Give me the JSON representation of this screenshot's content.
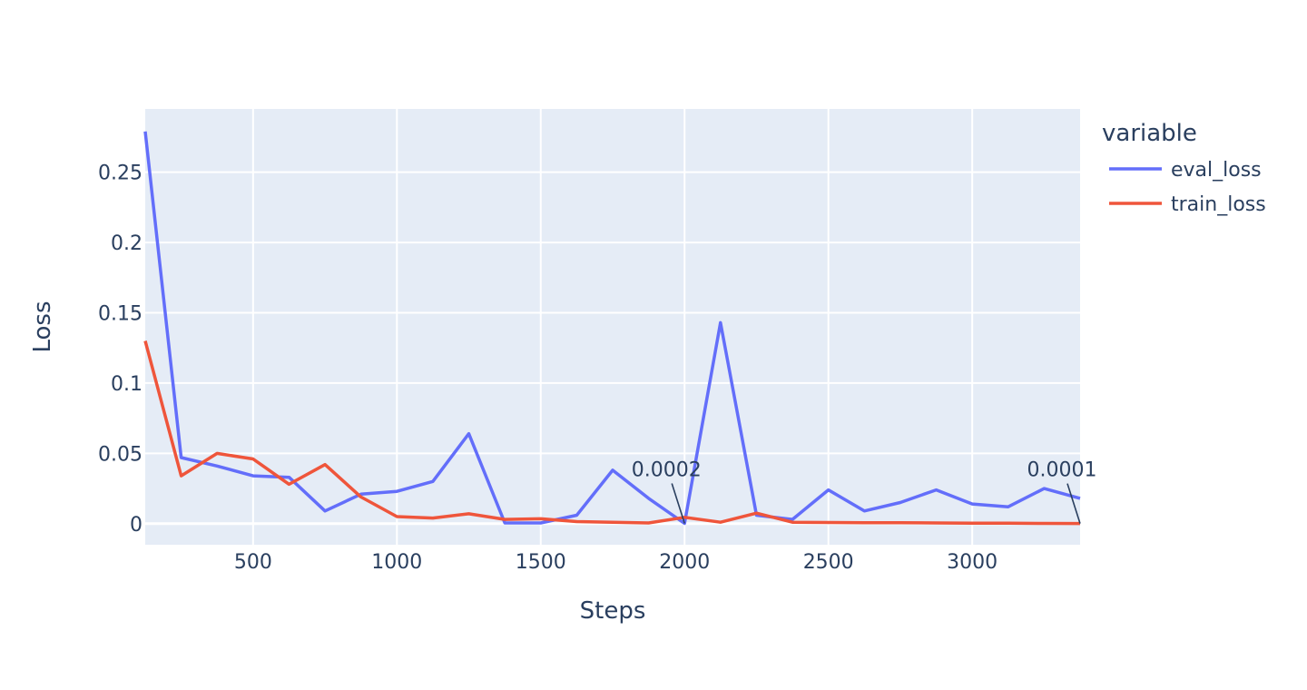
{
  "chart_data": {
    "type": "line",
    "title": "",
    "xlabel": "Steps",
    "ylabel": "Loss",
    "xlim": [
      125,
      3375
    ],
    "ylim": [
      -0.015,
      0.295
    ],
    "x_ticks": [
      500,
      1000,
      1500,
      2000,
      2500,
      3000
    ],
    "y_ticks": [
      {
        "value": 0,
        "label": "0"
      },
      {
        "value": 0.05,
        "label": "0.05"
      },
      {
        "value": 0.1,
        "label": "0.1"
      },
      {
        "value": 0.15,
        "label": "0.15"
      },
      {
        "value": 0.2,
        "label": "0.2"
      },
      {
        "value": 0.25,
        "label": "0.25"
      }
    ],
    "grid": true,
    "plot_background": "#e5ecf6",
    "legend": {
      "title": "variable",
      "placement": "right"
    },
    "series": [
      {
        "name": "eval_loss",
        "color": "#636efa",
        "points": [
          [
            125,
            0.279
          ],
          [
            250,
            0.047
          ],
          [
            375,
            0.041
          ],
          [
            500,
            0.034
          ],
          [
            625,
            0.033
          ],
          [
            750,
            0.009
          ],
          [
            875,
            0.021
          ],
          [
            1000,
            0.023
          ],
          [
            1125,
            0.03
          ],
          [
            1250,
            0.064
          ],
          [
            1375,
            0.0005
          ],
          [
            1500,
            0.0005
          ],
          [
            1625,
            0.006
          ],
          [
            1750,
            0.038
          ],
          [
            1875,
            0.018
          ],
          [
            2000,
            0.0002
          ],
          [
            2125,
            0.143
          ],
          [
            2250,
            0.006
          ],
          [
            2375,
            0.003
          ],
          [
            2500,
            0.024
          ],
          [
            2625,
            0.009
          ],
          [
            2750,
            0.015
          ],
          [
            2875,
            0.024
          ],
          [
            3000,
            0.014
          ],
          [
            3125,
            0.012
          ],
          [
            3250,
            0.025
          ],
          [
            3375,
            0.018
          ]
        ]
      },
      {
        "name": "train_loss",
        "color": "#ef553b",
        "points": [
          [
            125,
            0.13
          ],
          [
            250,
            0.034
          ],
          [
            375,
            0.05
          ],
          [
            500,
            0.046
          ],
          [
            625,
            0.028
          ],
          [
            750,
            0.042
          ],
          [
            875,
            0.019
          ],
          [
            1000,
            0.005
          ],
          [
            1125,
            0.004
          ],
          [
            1250,
            0.007
          ],
          [
            1375,
            0.003
          ],
          [
            1500,
            0.0035
          ],
          [
            1625,
            0.0015
          ],
          [
            1750,
            0.001
          ],
          [
            1875,
            0.0005
          ],
          [
            2000,
            0.0045
          ],
          [
            2125,
            0.001
          ],
          [
            2250,
            0.0075
          ],
          [
            2375,
            0.001
          ],
          [
            2500,
            0.0008
          ],
          [
            2625,
            0.0007
          ],
          [
            2750,
            0.0006
          ],
          [
            2875,
            0.0005
          ],
          [
            3000,
            0.0004
          ],
          [
            3125,
            0.0003
          ],
          [
            3250,
            0.0002
          ],
          [
            3375,
            0.0001
          ]
        ]
      }
    ],
    "annotations": [
      {
        "text": "0.0002",
        "x": 2000,
        "y": 0.0002
      },
      {
        "text": "0.0001",
        "x": 3375,
        "y": 0.0001
      }
    ]
  }
}
